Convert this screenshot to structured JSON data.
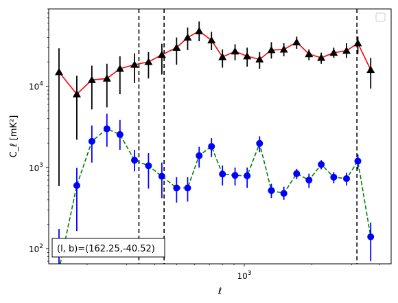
{
  "chart_data": {
    "type": "line",
    "x_scale": "log",
    "y_scale": "log",
    "xlim": [
      135,
      4500
    ],
    "ylim": [
      65,
      90000
    ],
    "x_tick_labels": [
      {
        "value": 1000,
        "text": "10^3"
      }
    ],
    "y_tick_labels": [
      {
        "value": 100,
        "text": "10^2"
      },
      {
        "value": 1000,
        "text": "10^3"
      },
      {
        "value": 10000,
        "text": "10^4"
      }
    ],
    "xlabel": "ℓ",
    "ylabel": "C_ℓ  [mK²]",
    "legend": "top-right (empty)",
    "vlines": [
      340,
      440,
      3170
    ],
    "annotation": "(l, b)=(162.25,-40.52)",
    "series": [
      {
        "marker": "triangle",
        "color": "#ff0000",
        "marker_color": "#000000",
        "err_color": "#000000",
        "line_style": "solid",
        "x": [
          150,
          180,
          210,
          245,
          280,
          325,
          375,
          430,
          500,
          560,
          630,
          715,
          800,
          910,
          1030,
          1170,
          1320,
          1500,
          1710,
          1940,
          2200,
          2500,
          2850,
          3200,
          3650,
          4100
        ],
        "y": [
          15000,
          8000,
          12000,
          12500,
          16500,
          18500,
          20000,
          24500,
          30000,
          40000,
          48000,
          37000,
          23000,
          27000,
          23500,
          21500,
          28000,
          28500,
          35000,
          25000,
          22500,
          26000,
          27500,
          34000,
          16000,
          0
        ],
        "err_low": [
          590,
          2200,
          5200,
          5500,
          8000,
          11000,
          12500,
          14000,
          18500,
          28000,
          36000,
          28000,
          17000,
          21000,
          17500,
          16500,
          22000,
          23500,
          29000,
          21000,
          19000,
          22500,
          22500,
          25000,
          9400,
          0
        ],
        "err_high": [
          29500,
          13500,
          18000,
          19000,
          23500,
          25500,
          26500,
          33500,
          40000,
          53000,
          63000,
          47000,
          28500,
          33000,
          30000,
          26500,
          35000,
          34000,
          41000,
          28500,
          26000,
          30000,
          34000,
          41000,
          22500,
          0
        ]
      },
      {
        "marker": "circle",
        "color": "#008000",
        "marker_color": "#0000ff",
        "err_color": "#0000ff",
        "line_style": "dashed",
        "x": [
          150,
          180,
          210,
          245,
          280,
          325,
          375,
          430,
          500,
          560,
          630,
          715,
          800,
          910,
          1030,
          1170,
          1320,
          1500,
          1710,
          1940,
          2200,
          2500,
          2850,
          3200,
          3650,
          4100
        ],
        "y": [
          55,
          600,
          2100,
          3000,
          2550,
          1230,
          1050,
          780,
          560,
          560,
          1400,
          1820,
          830,
          800,
          790,
          1980,
          520,
          480,
          840,
          700,
          1090,
          760,
          730,
          1200,
          140,
          0
        ],
        "err_low": [
          25,
          165,
          1150,
          1800,
          1650,
          900,
          550,
          420,
          370,
          380,
          1000,
          1350,
          600,
          600,
          560,
          1550,
          420,
          400,
          720,
          560,
          950,
          640,
          600,
          950,
          70,
          0
        ],
        "err_high": [
          175,
          990,
          3300,
          4600,
          3850,
          1650,
          1500,
          1150,
          760,
          760,
          1800,
          2300,
          1060,
          1000,
          1000,
          2420,
          630,
          580,
          960,
          840,
          1230,
          880,
          860,
          1450,
          210,
          0
        ]
      }
    ]
  }
}
